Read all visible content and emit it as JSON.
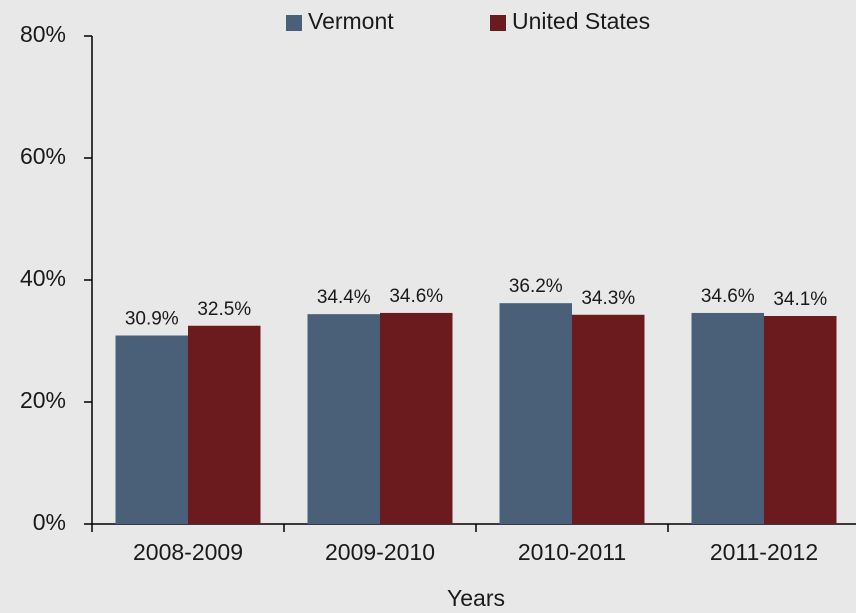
{
  "chart_data": {
    "type": "bar",
    "x_label": "Years",
    "categories": [
      "2008-2009",
      "2009-2010",
      "2010-2011",
      "2011-2012"
    ],
    "series": [
      {
        "name": "Vermont",
        "color": "#4a6079",
        "values": [
          30.9,
          34.4,
          36.2,
          34.6
        ],
        "value_labels": [
          "30.9%",
          "34.4%",
          "36.2%",
          "34.6%"
        ]
      },
      {
        "name": "United States",
        "color": "#6b1a1e",
        "values": [
          32.5,
          34.6,
          34.3,
          34.1
        ],
        "value_labels": [
          "32.5%",
          "34.6%",
          "34.3%",
          "34.1%"
        ]
      }
    ],
    "ylim": [
      0,
      80
    ],
    "yticks": [
      {
        "value": 0,
        "label": "0%"
      },
      {
        "value": 20,
        "label": "20%"
      },
      {
        "value": 40,
        "label": "40%"
      },
      {
        "value": 60,
        "label": "60%"
      },
      {
        "value": 80,
        "label": "80%"
      }
    ],
    "legend": "top"
  }
}
